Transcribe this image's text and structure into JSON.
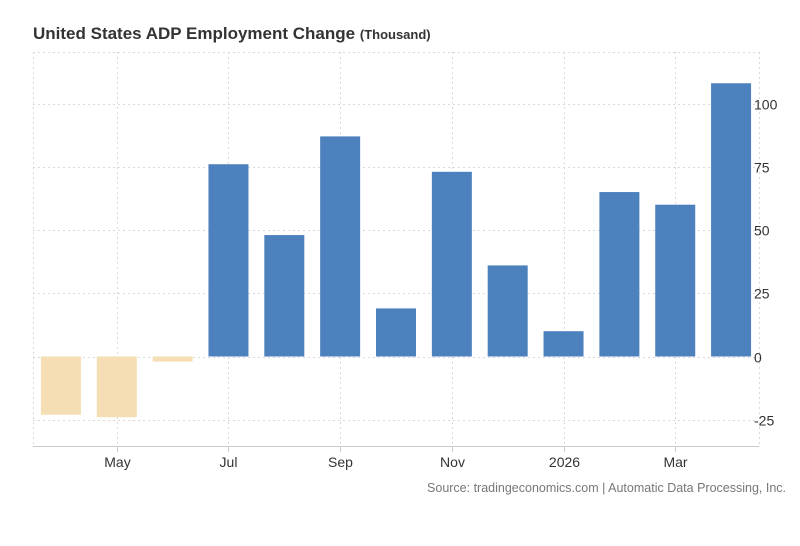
{
  "chart_data": {
    "type": "bar",
    "title": "United States ADP Employment Change",
    "unit": "(Thousand)",
    "source": "Source: tradingeconomics.com | Automatic Data Processing, Inc.",
    "categories": [
      "Apr 2025",
      "May 2025",
      "Jun 2025",
      "Jul 2025",
      "Aug 2025",
      "Sep 2025",
      "Oct 2025",
      "Nov 2025",
      "Dec 2025",
      "Jan 2026",
      "Feb 2026",
      "Mar 2026",
      "Apr 2026"
    ],
    "values": [
      -23,
      -24,
      -2,
      76,
      48,
      87,
      19,
      73,
      36,
      10,
      65,
      60,
      108
    ],
    "x_tick_labels": [
      {
        "label": "May",
        "index": 1
      },
      {
        "label": "Jul",
        "index": 3
      },
      {
        "label": "Sep",
        "index": 5
      },
      {
        "label": "Nov",
        "index": 7
      },
      {
        "label": "2026",
        "index": 9
      },
      {
        "label": "Mar",
        "index": 11
      }
    ],
    "y_ticks": [
      -25,
      0,
      25,
      50,
      75,
      100
    ],
    "ylim": [
      -35,
      120
    ],
    "grid": true,
    "colors": {
      "positive": "#4d81bd",
      "negative": "#f5deb3",
      "grid": "#d9d9d9",
      "axis": "#cccccc"
    }
  }
}
